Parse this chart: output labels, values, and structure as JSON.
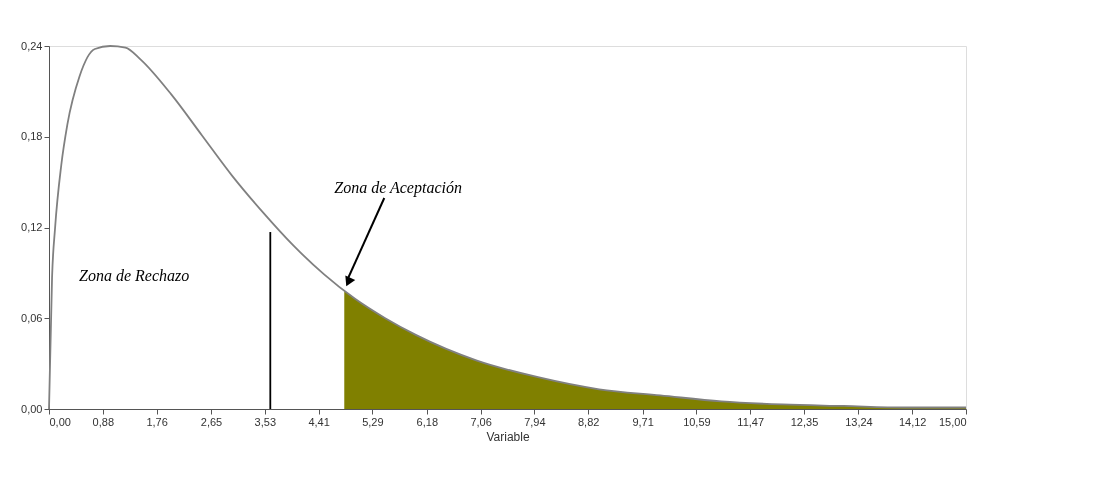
{
  "chart_data": {
    "type": "line",
    "xlabel": "Variable",
    "xlim": [
      0,
      15
    ],
    "ylim": [
      0,
      0.24
    ],
    "xticks": [
      {
        "value": 0,
        "label": "0,00"
      },
      {
        "value": 0.88,
        "label": "0,88"
      },
      {
        "value": 1.76,
        "label": "1,76"
      },
      {
        "value": 2.65,
        "label": "2,65"
      },
      {
        "value": 3.53,
        "label": "3,53"
      },
      {
        "value": 4.41,
        "label": "4,41"
      },
      {
        "value": 5.29,
        "label": "5,29"
      },
      {
        "value": 6.18,
        "label": "6,18"
      },
      {
        "value": 7.06,
        "label": "7,06"
      },
      {
        "value": 7.94,
        "label": "7,94"
      },
      {
        "value": 8.82,
        "label": "8,82"
      },
      {
        "value": 9.71,
        "label": "9,71"
      },
      {
        "value": 10.59,
        "label": "10,59"
      },
      {
        "value": 11.47,
        "label": "11,47"
      },
      {
        "value": 12.35,
        "label": "12,35"
      },
      {
        "value": 13.24,
        "label": "13,24"
      },
      {
        "value": 14.12,
        "label": "14,12"
      },
      {
        "value": 15,
        "label": "15,00"
      }
    ],
    "yticks": [
      {
        "value": 0,
        "label": "0,00"
      },
      {
        "value": 0.06,
        "label": "0,06"
      },
      {
        "value": 0.12,
        "label": "0,12"
      },
      {
        "value": 0.18,
        "label": "0,18"
      },
      {
        "value": 0.24,
        "label": "0,24"
      }
    ],
    "series": [
      {
        "type": "area",
        "color": "#808000",
        "x": [
          4.83,
          5,
          5.5,
          6,
          7,
          8,
          9,
          10,
          11,
          12,
          13,
          14,
          15
        ],
        "values": [
          0.078,
          0.073,
          0.06,
          0.049,
          0.032,
          0.021,
          0.013,
          0.009,
          0.005,
          0.003,
          0.002,
          0.001,
          0.001
        ]
      },
      {
        "color": "#808080",
        "x": [
          0,
          0.05,
          0.1,
          0.2,
          0.3,
          0.5,
          0.75,
          1,
          1.25,
          1.5,
          2,
          2.5,
          3,
          3.5,
          4,
          4.5,
          5,
          5.5,
          6,
          7,
          8,
          9,
          10,
          11,
          12,
          13,
          14,
          15
        ],
        "values": [
          0,
          0.087,
          0.12,
          0.161,
          0.188,
          0.22,
          0.238,
          0.24,
          0.239,
          0.231,
          0.208,
          0.181,
          0.154,
          0.13,
          0.108,
          0.089,
          0.073,
          0.06,
          0.049,
          0.032,
          0.021,
          0.013,
          0.009,
          0.005,
          0.003,
          0.002,
          0.001,
          0.001
        ]
      },
      {
        "color": "#000000",
        "x": [
          3.62,
          3.62
        ],
        "values": [
          0,
          0.117
        ]
      }
    ],
    "annotations": [
      {
        "text": "Zona de Aceptación",
        "x": 4.83,
        "y": 0.08
      },
      "Zona de Rechazo"
    ],
    "marker": "none",
    "line_style": "solid",
    "grid": false
  }
}
